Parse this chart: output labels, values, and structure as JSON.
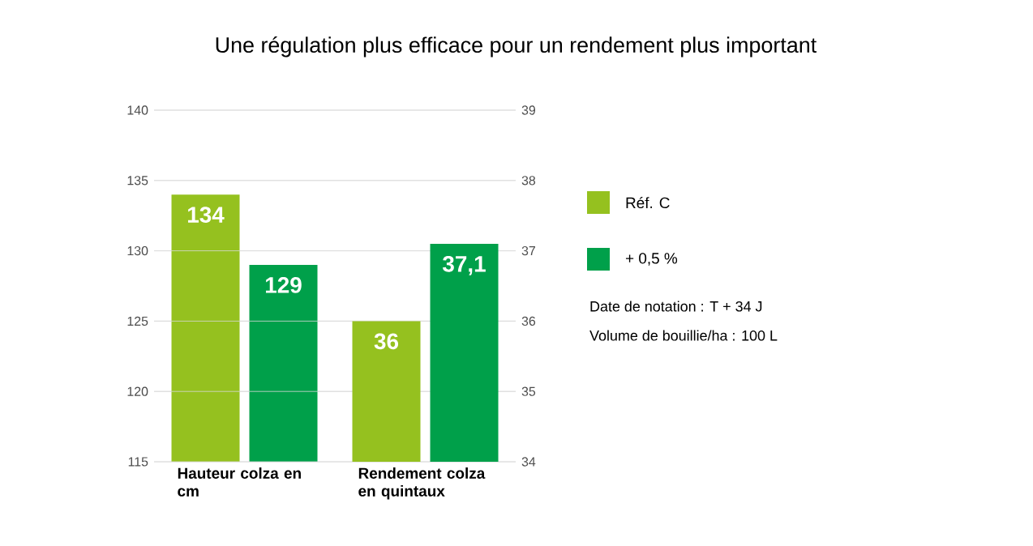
{
  "chart_data": {
    "type": "bar",
    "title": "Une régulation plus efficace pour un rendement plus important",
    "categories": [
      "Hauteur colza en cm",
      "Rendement colza en quintaux"
    ],
    "series": [
      {
        "name": "Réf. C",
        "color": "#95c11f",
        "values": [
          134,
          null
        ],
        "value_labels": [
          "134",
          null
        ]
      },
      {
        "name": "+ 0,5 %",
        "color": "#00a04a",
        "values": [
          129,
          null
        ],
        "value_labels": [
          "129",
          null
        ]
      },
      {
        "color": "#95c11f",
        "axis": "y2",
        "values": [
          null,
          36
        ],
        "value_labels": [
          null,
          "36"
        ]
      },
      {
        "color": "#00a04a",
        "axis": "y2",
        "values": [
          null,
          37.1
        ],
        "value_labels": [
          null,
          "37,1"
        ]
      }
    ],
    "ylim": [
      115,
      140
    ],
    "yticks": [
      115,
      120,
      125,
      130,
      135,
      140
    ],
    "y2lim": [
      34,
      39
    ],
    "y2ticks": [
      34,
      35,
      36,
      37,
      38,
      39
    ],
    "grid": "y",
    "legend": "right",
    "annotations": [
      "Date de notation : T + 34 J",
      "Volume de bouillie/ha : 100 L"
    ]
  }
}
